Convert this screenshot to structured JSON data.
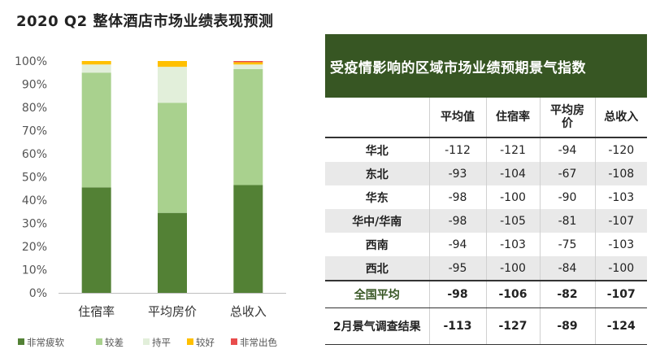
{
  "chart_data": [
    {
      "type": "bar",
      "stacked": true,
      "title": "2020 Q2 整体酒店市场业绩表现预测",
      "categories": [
        "住宿率",
        "平均房价",
        "总收入"
      ],
      "yticks": [
        "0%",
        "10%",
        "20%",
        "30%",
        "40%",
        "50%",
        "60%",
        "70%",
        "80%",
        "90%",
        "100%"
      ],
      "ylim": [
        0,
        100
      ],
      "legend_position": "bottom",
      "series": [
        {
          "name": "非常疲软",
          "color": "#538135",
          "values": [
            45.5,
            34.5,
            46.5
          ]
        },
        {
          "name": "较差",
          "color": "#a9d18e",
          "values": [
            49.5,
            47.5,
            50.0
          ]
        },
        {
          "name": "持平",
          "color": "#e2efda",
          "values": [
            3.5,
            15.5,
            2.0
          ]
        },
        {
          "name": "较好",
          "color": "#ffc000",
          "values": [
            1.5,
            2.5,
            1.0
          ]
        },
        {
          "name": "非常出色",
          "color": "#e84c4c",
          "values": [
            0,
            0,
            0.5
          ]
        }
      ]
    },
    {
      "type": "table",
      "title": "受疫情影响的区域市场业绩预期景气指数",
      "columns": [
        "",
        "平均值",
        "住宿率",
        "平均房价",
        "总收入"
      ],
      "rows": [
        {
          "label": "华北",
          "values": [
            "-112",
            "-121",
            "-94",
            "-120"
          ]
        },
        {
          "label": "东北",
          "values": [
            "-93",
            "-104",
            "-67",
            "-108"
          ]
        },
        {
          "label": "华东",
          "values": [
            "-98",
            "-100",
            "-90",
            "-103"
          ]
        },
        {
          "label": "华中/华南",
          "values": [
            "-98",
            "-105",
            "-81",
            "-107"
          ]
        },
        {
          "label": "西南",
          "values": [
            "-94",
            "-103",
            "-75",
            "-103"
          ]
        },
        {
          "label": "西北",
          "values": [
            "-95",
            "-100",
            "-84",
            "-100"
          ]
        }
      ],
      "national": {
        "label": "全国平均",
        "values": [
          "-98",
          "-106",
          "-82",
          "-107"
        ]
      },
      "survey": {
        "label": "2月景气调查结果",
        "values": [
          "-113",
          "-127",
          "-89",
          "-124"
        ]
      }
    }
  ]
}
